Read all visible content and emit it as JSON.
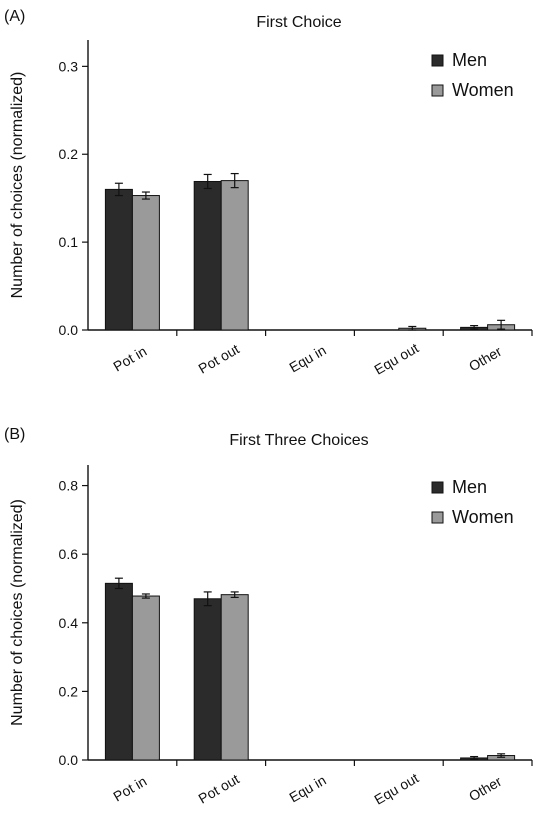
{
  "colors": {
    "men": "#2b2b2b",
    "women": "#9a9a9a",
    "axis": "#111111"
  },
  "chart_data": [
    {
      "panel_label": "(A)",
      "type": "bar",
      "title": "First Choice",
      "xlabel": "",
      "ylabel": "Number of choices (normalized)",
      "categories": [
        "Pot in",
        "Pot out",
        "Equ in",
        "Equ out",
        "Other"
      ],
      "ylim": [
        0,
        0.33
      ],
      "yticks": [
        0.0,
        0.1,
        0.2,
        0.3
      ],
      "ytick_labels": [
        "0.0",
        "0.1",
        "0.2",
        "0.3"
      ],
      "legend_position": "top-right",
      "grid": false,
      "series": [
        {
          "name": "Men",
          "values": [
            0.16,
            0.169,
            0.0,
            0.0,
            0.003
          ],
          "errors": [
            0.007,
            0.008,
            0.0,
            0.0,
            0.002
          ]
        },
        {
          "name": "Women",
          "values": [
            0.153,
            0.17,
            0.0,
            0.002,
            0.006
          ],
          "errors": [
            0.004,
            0.008,
            0.0,
            0.002,
            0.005
          ]
        }
      ]
    },
    {
      "panel_label": "(B)",
      "type": "bar",
      "title": "First Three Choices",
      "xlabel": "",
      "ylabel": "Number of choices (normalized)",
      "categories": [
        "Pot in",
        "Pot out",
        "Equ in",
        "Equ out",
        "Other"
      ],
      "ylim": [
        0,
        0.86
      ],
      "yticks": [
        0.0,
        0.2,
        0.4,
        0.6,
        0.8
      ],
      "ytick_labels": [
        "0.0",
        "0.2",
        "0.4",
        "0.6",
        "0.8"
      ],
      "legend_position": "top-right",
      "grid": false,
      "series": [
        {
          "name": "Men",
          "values": [
            0.515,
            0.47,
            0.0,
            0.0,
            0.006
          ],
          "errors": [
            0.015,
            0.02,
            0.0,
            0.0,
            0.004
          ]
        },
        {
          "name": "Women",
          "values": [
            0.478,
            0.482,
            0.0,
            0.0,
            0.013
          ],
          "errors": [
            0.006,
            0.008,
            0.0,
            0.0,
            0.005
          ]
        }
      ]
    }
  ]
}
